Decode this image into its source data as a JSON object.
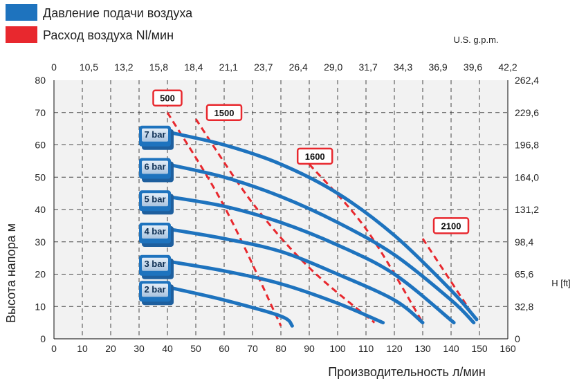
{
  "chart_data": {
    "type": "line",
    "legend": {
      "placement": "top-left",
      "items": [
        {
          "label": "Давление подачи воздуха",
          "color": "#1e73be"
        },
        {
          "label": "Расход воздуха Nl/мин",
          "color": "#e8282e"
        }
      ]
    },
    "xlabel": "Производительность л/мин",
    "ylabel": "Высота напора  м",
    "x2_unit": "U.S. g.p.m.",
    "y2_unit": "H [ft]",
    "xlim": [
      0,
      160
    ],
    "ylim": [
      0,
      80
    ],
    "x_ticks": [
      0,
      10,
      20,
      30,
      40,
      50,
      60,
      70,
      80,
      90,
      100,
      110,
      120,
      130,
      140,
      150,
      160
    ],
    "y_ticks": [
      0,
      10,
      20,
      30,
      40,
      50,
      60,
      70,
      80
    ],
    "x2_ticks": [
      "0",
      "10,5",
      "13,2",
      "15,8",
      "18,4",
      "21,1",
      "23,7",
      "26,4",
      "29,0",
      "31,7",
      "34,3",
      "36,9",
      "39,6",
      "42,2"
    ],
    "y2_ticks": [
      "0",
      "32,8",
      "65,6",
      "98,4",
      "131,2",
      "164,0",
      "196,8",
      "229,6",
      "262,4"
    ],
    "grid": true,
    "colors": {
      "pressure": "#1e73be",
      "air": "#e8282e",
      "plot_bg": "#f2f2f2"
    },
    "pressure_series": [
      {
        "name": "7 bar",
        "points": [
          [
            40,
            64
          ],
          [
            60,
            60
          ],
          [
            80,
            54
          ],
          [
            100,
            45
          ],
          [
            120,
            32
          ],
          [
            140,
            15
          ],
          [
            149,
            6
          ]
        ]
      },
      {
        "name": "6 bar",
        "points": [
          [
            40,
            54
          ],
          [
            60,
            50
          ],
          [
            80,
            44
          ],
          [
            100,
            36
          ],
          [
            120,
            26
          ],
          [
            140,
            12
          ],
          [
            148,
            5
          ]
        ]
      },
      {
        "name": "5 bar",
        "points": [
          [
            40,
            44
          ],
          [
            60,
            41
          ],
          [
            80,
            36
          ],
          [
            100,
            29
          ],
          [
            120,
            20
          ],
          [
            141,
            5
          ]
        ]
      },
      {
        "name": "4 bar",
        "points": [
          [
            40,
            34
          ],
          [
            60,
            31
          ],
          [
            80,
            27
          ],
          [
            100,
            20
          ],
          [
            120,
            12
          ],
          [
            130,
            5
          ]
        ]
      },
      {
        "name": "3 bar",
        "points": [
          [
            40,
            24
          ],
          [
            60,
            21
          ],
          [
            80,
            17
          ],
          [
            100,
            11
          ],
          [
            116,
            5
          ]
        ]
      },
      {
        "name": "2 bar",
        "points": [
          [
            40,
            16
          ],
          [
            60,
            12
          ],
          [
            80,
            7
          ],
          [
            84,
            4
          ]
        ]
      }
    ],
    "air_series": [
      {
        "name": "500",
        "points": [
          [
            40,
            70
          ],
          [
            60,
            41
          ],
          [
            80,
            4
          ]
        ]
      },
      {
        "name": "1500",
        "points": [
          [
            50,
            68
          ],
          [
            70,
            42
          ],
          [
            90,
            22
          ],
          [
            113,
            5
          ]
        ]
      },
      {
        "name": "1600",
        "points": [
          [
            90,
            54
          ],
          [
            110,
            34
          ],
          [
            130,
            5
          ]
        ]
      },
      {
        "name": "2100",
        "points": [
          [
            130,
            31
          ],
          [
            148,
            7
          ]
        ]
      }
    ],
    "air_label_points": [
      [
        40,
        74.5
      ],
      [
        60,
        70
      ],
      [
        92,
        56.5
      ],
      [
        140,
        35
      ]
    ]
  }
}
